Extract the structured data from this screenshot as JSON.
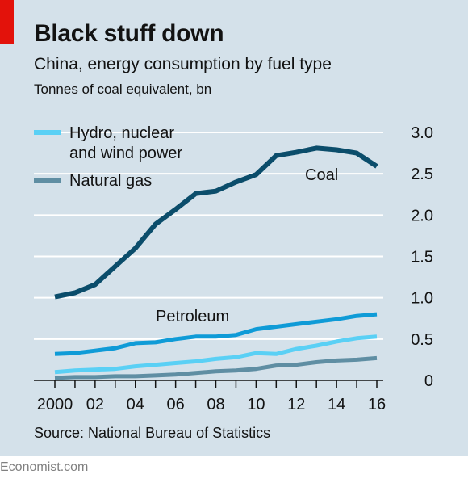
{
  "header": {
    "title": "Black stuff down",
    "subtitle": "China, energy consumption by fuel type",
    "units": "Tonnes of coal equivalent, bn"
  },
  "source": "Source: National Bureau of Statistics",
  "footer": "Economist.com",
  "colors": {
    "background": "#d4e1ea",
    "accent": "#e3120b",
    "coal": "#0b4d6b",
    "petroleum": "#0f9bd7",
    "hydro_nuclear_wind": "#5ad0f5",
    "natural_gas": "#5f8ea3"
  },
  "chart_data": {
    "type": "line",
    "title": "Black stuff down",
    "subtitle": "China, energy consumption by fuel type",
    "ylabel": "Tonnes of coal equivalent, bn",
    "x": [
      2000,
      2001,
      2002,
      2003,
      2004,
      2005,
      2006,
      2007,
      2008,
      2009,
      2010,
      2011,
      2012,
      2013,
      2014,
      2015,
      2016
    ],
    "x_tick_values": [
      2000,
      2002,
      2004,
      2006,
      2008,
      2010,
      2012,
      2014,
      2016
    ],
    "x_tick_labels": [
      "2000",
      "02",
      "04",
      "06",
      "08",
      "10",
      "12",
      "14",
      "16"
    ],
    "xlim": [
      2000,
      2016
    ],
    "ylim": [
      0,
      3.0
    ],
    "y_tick_values": [
      0,
      0.5,
      1.0,
      1.5,
      2.0,
      2.5,
      3.0
    ],
    "y_tick_labels": [
      "0",
      "0.5",
      "1.0",
      "1.5",
      "2.0",
      "2.5",
      "3.0"
    ],
    "grid": true,
    "y_axis_side": "right",
    "legend_position": "top-left",
    "legend": [
      "Hydro, nuclear and wind power",
      "Natural gas"
    ],
    "series": [
      {
        "name": "Coal",
        "color": "#0b4d6b",
        "values": [
          1.01,
          1.06,
          1.16,
          1.38,
          1.6,
          1.89,
          2.07,
          2.26,
          2.29,
          2.4,
          2.49,
          2.72,
          2.76,
          2.81,
          2.79,
          2.75,
          2.59
        ]
      },
      {
        "name": "Petroleum",
        "color": "#0f9bd7",
        "values": [
          0.32,
          0.33,
          0.36,
          0.39,
          0.45,
          0.46,
          0.5,
          0.53,
          0.53,
          0.55,
          0.62,
          0.65,
          0.68,
          0.71,
          0.74,
          0.78,
          0.8
        ]
      },
      {
        "name": "Hydro, nuclear and wind power",
        "color": "#5ad0f5",
        "values": [
          0.1,
          0.12,
          0.13,
          0.14,
          0.17,
          0.19,
          0.21,
          0.23,
          0.26,
          0.28,
          0.33,
          0.32,
          0.38,
          0.42,
          0.47,
          0.51,
          0.53
        ]
      },
      {
        "name": "Natural gas",
        "color": "#5f8ea3",
        "values": [
          0.03,
          0.04,
          0.04,
          0.05,
          0.05,
          0.06,
          0.07,
          0.09,
          0.11,
          0.12,
          0.14,
          0.18,
          0.19,
          0.22,
          0.24,
          0.25,
          0.27
        ]
      }
    ],
    "annotations": [
      {
        "text": "Coal",
        "series": "Coal"
      },
      {
        "text": "Petroleum",
        "series": "Petroleum"
      }
    ]
  }
}
